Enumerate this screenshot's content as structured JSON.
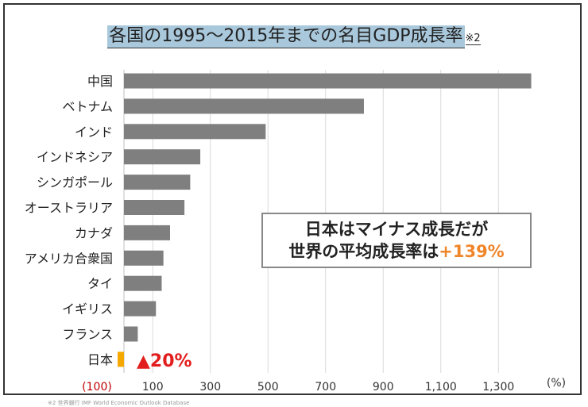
{
  "chart_data": {
    "type": "bar",
    "orientation": "horizontal",
    "title": "各国の1995～2015年までの名目GDP成長率",
    "title_note": "※2",
    "categories": [
      "中国",
      "ベトナム",
      "インド",
      "インドネシア",
      "シンガポール",
      "オーストラリア",
      "カナダ",
      "アメリカ合衆国",
      "タイ",
      "イギリス",
      "フランス",
      "日本"
    ],
    "values": [
      1414,
      833,
      492,
      265,
      230,
      210,
      160,
      137,
      131,
      111,
      48,
      -20
    ],
    "bar_color": "#7f7f7f",
    "highlight_color": "#f5a800",
    "highlight_category": "日本",
    "value_label": "▲20%",
    "value_label_color": "#e31e1e",
    "xlim": [
      -100,
      1450
    ],
    "x_ticks": [
      -100,
      100,
      300,
      500,
      700,
      900,
      1100,
      1300
    ],
    "x_tick_labels": [
      "(100)",
      "100",
      "300",
      "500",
      "700",
      "900",
      "1,100",
      "1,300"
    ],
    "x_unit": "(%)",
    "grid": true,
    "gridline_color": "#d9d9d9"
  },
  "callout": {
    "line1": "日本はマイナス成長だが",
    "line2_prefix": "世界の平均成長率は",
    "line2_value": "+139%"
  },
  "footer": "※2 世界銀行 IMF World Economic Outlook Database"
}
